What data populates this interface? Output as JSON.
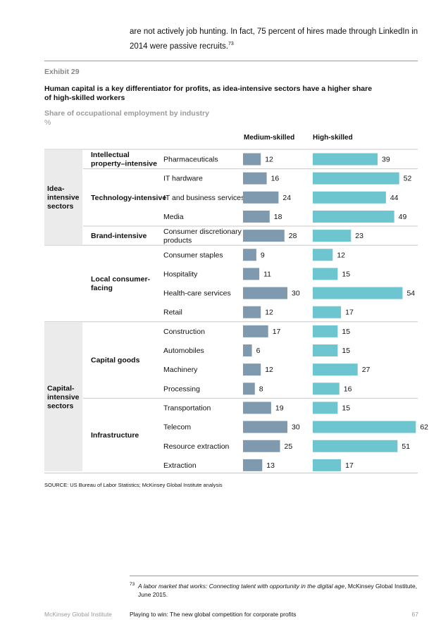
{
  "intro": {
    "text": "are not actively job hunting. In fact, 75 percent of hires made through LinkedIn in 2014 were passive recruits.",
    "footnote_ref": "73"
  },
  "exhibit": {
    "label": "Exhibit 29",
    "title": "Human capital is a key differentiator for profits, as idea-intensive sectors have a higher share of high-skilled workers",
    "subtitle": "Share of occupational employment by industry",
    "unit": "%"
  },
  "chart_data": {
    "type": "bar",
    "subtype": "paired horizontal bars",
    "title": "Share of occupational employment by industry",
    "unit": "%",
    "grid": false,
    "colors": {
      "Medium-skilled": "#7f9aae",
      "High-skilled": "#6cc5cf"
    },
    "series_names": [
      "Medium-skilled",
      "High-skilled"
    ],
    "categories": [
      "Pharmaceuticals",
      "IT hardware",
      "IT and business services",
      "Media",
      "Consumer discretionary products",
      "Consumer staples",
      "Hospitality",
      "Health-care services",
      "Retail",
      "Construction",
      "Automobiles",
      "Machinery",
      "Processing",
      "Transportation",
      "Telecom",
      "Resource extraction",
      "Extraction"
    ],
    "series": [
      {
        "name": "Medium-skilled",
        "values": [
          12,
          16,
          24,
          18,
          28,
          9,
          11,
          30,
          12,
          17,
          6,
          12,
          8,
          19,
          30,
          25,
          13
        ]
      },
      {
        "name": "High-skilled",
        "values": [
          39,
          52,
          44,
          49,
          23,
          12,
          15,
          54,
          17,
          15,
          15,
          27,
          16,
          15,
          62,
          51,
          17
        ]
      }
    ],
    "sectors": [
      {
        "label": "Idea-intensive sectors",
        "rows": [
          0,
          4
        ]
      },
      {
        "label": "",
        "rows": [
          5,
          8
        ]
      },
      {
        "label": "Capital-intensive sectors",
        "rows": [
          9,
          16
        ]
      }
    ],
    "groups": [
      {
        "label": "Intellectual property–intensive",
        "rows": [
          0,
          0
        ]
      },
      {
        "label": "Technology-intensive",
        "rows": [
          1,
          3
        ]
      },
      {
        "label": "Brand-intensive",
        "rows": [
          4,
          4
        ]
      },
      {
        "label": "Local consumer-facing",
        "rows": [
          5,
          8
        ]
      },
      {
        "label": "Capital goods",
        "rows": [
          9,
          12
        ]
      },
      {
        "label": "Infrastructure",
        "rows": [
          13,
          16
        ]
      }
    ]
  },
  "source": "SOURCE: US Bureau of Labor Statistics; McKinsey Global Institute analysis",
  "footnote": {
    "number": "73",
    "italic": "A labor market that works: Connecting talent with opportunity in the digital age",
    "rest": ", McKinsey Global Institute, June 2015."
  },
  "footer": {
    "publisher": "McKinsey Global Institute",
    "report": "Playing to win: The new global competition for corporate profits",
    "page": "67"
  }
}
